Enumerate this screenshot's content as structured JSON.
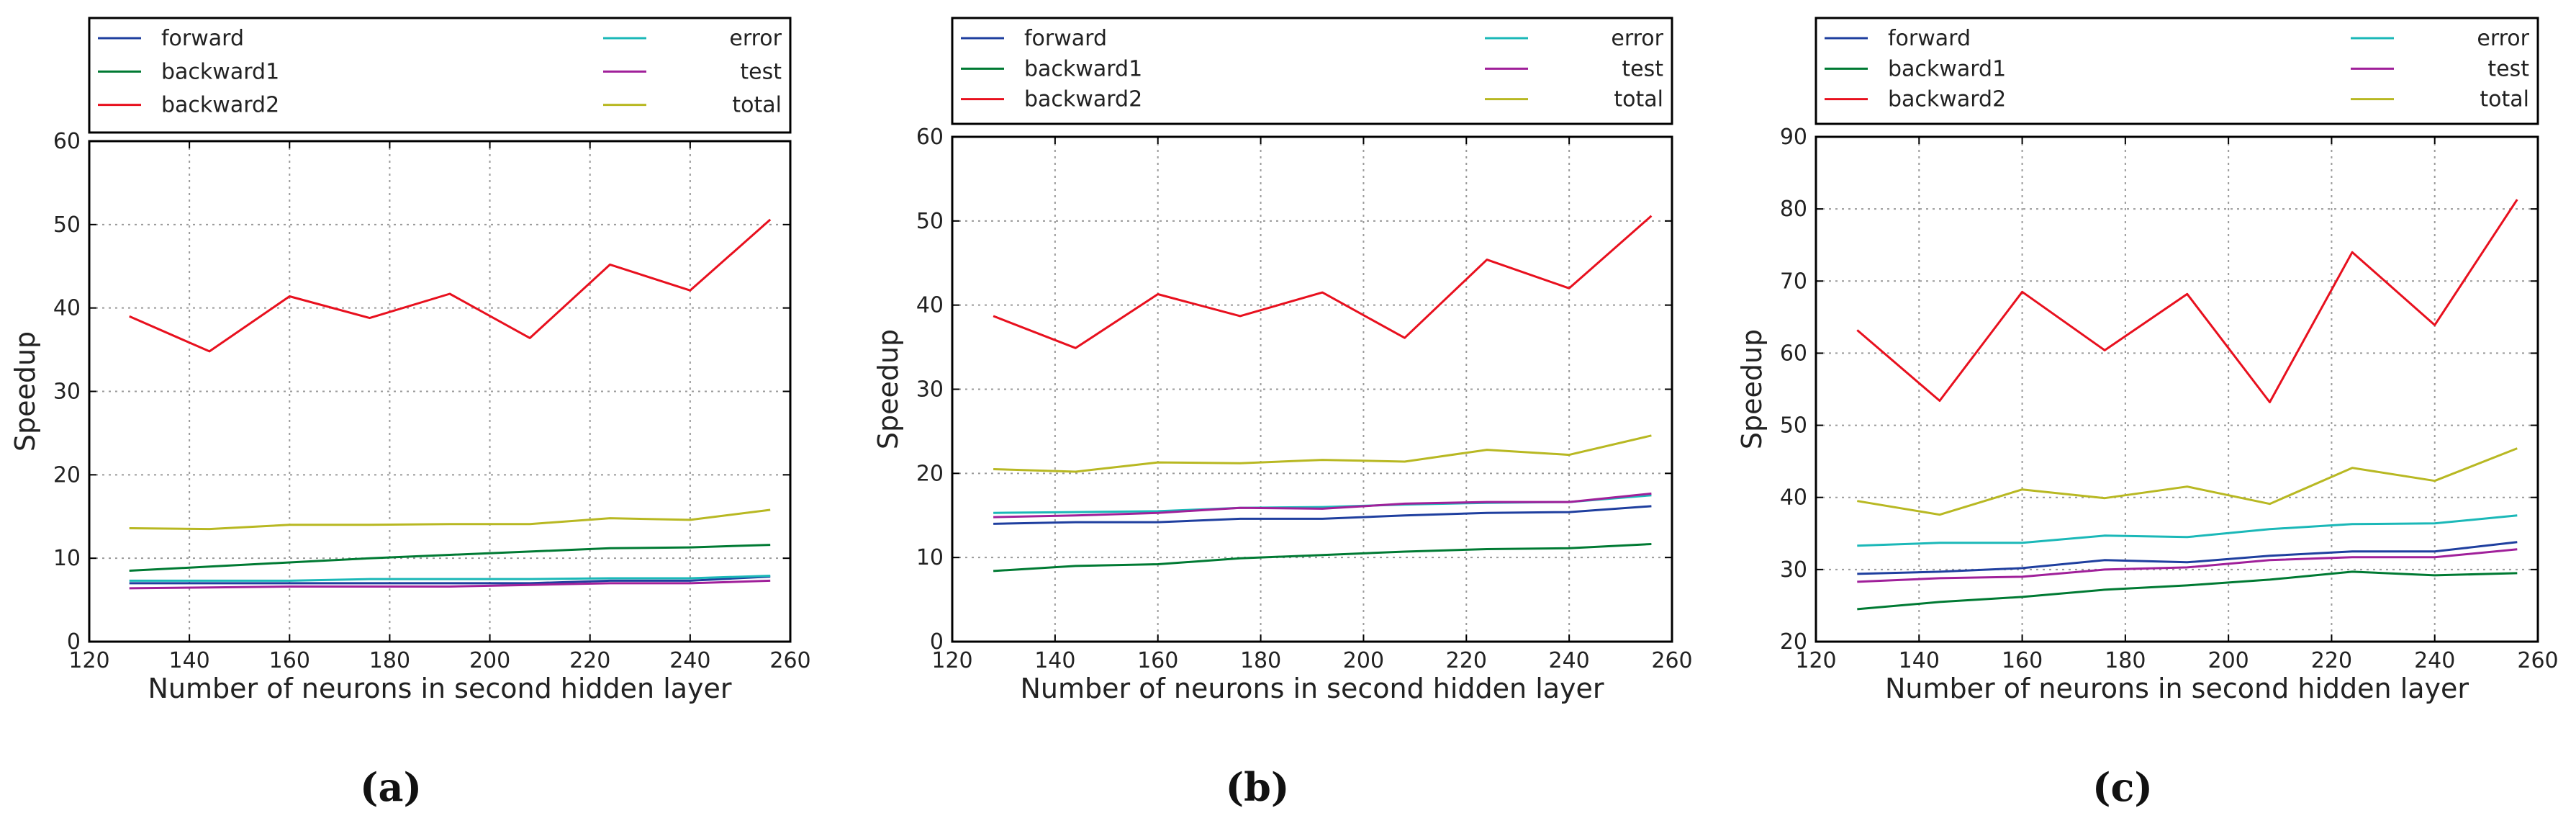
{
  "chart_data": [
    {
      "type": "line",
      "panel_label": "(a)",
      "xlabel": "Number of neurons in second hidden layer",
      "ylabel": "Speedup",
      "xlim": [
        120,
        260
      ],
      "ylim": [
        0,
        60
      ],
      "xticks": [
        120,
        140,
        160,
        180,
        200,
        220,
        240,
        260
      ],
      "yticks": [
        0,
        10,
        20,
        30,
        40,
        50,
        60
      ],
      "grid": true,
      "legend_position": "top",
      "x": [
        128,
        144,
        160,
        176,
        192,
        208,
        224,
        240,
        256
      ],
      "series": [
        {
          "name": "forward",
          "color": "#1f3f9f",
          "values": [
            7.0,
            7.0,
            7.0,
            7.0,
            7.0,
            7.0,
            7.3,
            7.3,
            7.8
          ]
        },
        {
          "name": "backward1",
          "color": "#007a33",
          "values": [
            8.5,
            9.0,
            9.5,
            10.0,
            10.4,
            10.8,
            11.2,
            11.3,
            11.6
          ]
        },
        {
          "name": "backward2",
          "color": "#e8101e",
          "values": [
            39.0,
            34.8,
            41.4,
            38.8,
            41.7,
            36.4,
            45.2,
            42.1,
            50.6
          ]
        },
        {
          "name": "error",
          "color": "#1bb8b8",
          "values": [
            7.3,
            7.3,
            7.3,
            7.5,
            7.5,
            7.5,
            7.6,
            7.6,
            7.9
          ]
        },
        {
          "name": "test",
          "color": "#a0209a",
          "values": [
            6.4,
            6.5,
            6.6,
            6.6,
            6.6,
            6.8,
            7.0,
            7.0,
            7.3
          ]
        },
        {
          "name": "total",
          "color": "#b8b822",
          "values": [
            13.6,
            13.5,
            14.0,
            14.0,
            14.1,
            14.1,
            14.8,
            14.6,
            15.8
          ]
        }
      ]
    },
    {
      "type": "line",
      "panel_label": "(b)",
      "xlabel": "Number of neurons in second hidden layer",
      "ylabel": "Speedup",
      "xlim": [
        120,
        260
      ],
      "ylim": [
        0,
        60
      ],
      "xticks": [
        120,
        140,
        160,
        180,
        200,
        220,
        240,
        260
      ],
      "yticks": [
        0,
        10,
        20,
        30,
        40,
        50,
        60
      ],
      "grid": true,
      "legend_position": "top",
      "x": [
        128,
        144,
        160,
        176,
        192,
        208,
        224,
        240,
        256
      ],
      "series": [
        {
          "name": "forward",
          "color": "#1f3f9f",
          "values": [
            14.0,
            14.2,
            14.2,
            14.6,
            14.6,
            15.0,
            15.3,
            15.4,
            16.1
          ]
        },
        {
          "name": "backward1",
          "color": "#007a33",
          "values": [
            8.4,
            9.0,
            9.2,
            9.9,
            10.3,
            10.7,
            11.0,
            11.1,
            11.6
          ]
        },
        {
          "name": "backward2",
          "color": "#e8101e",
          "values": [
            38.7,
            34.9,
            41.3,
            38.7,
            41.5,
            36.1,
            45.4,
            42.0,
            50.6
          ]
        },
        {
          "name": "error",
          "color": "#1bb8b8",
          "values": [
            15.3,
            15.4,
            15.5,
            15.9,
            16.0,
            16.3,
            16.5,
            16.6,
            17.4
          ]
        },
        {
          "name": "test",
          "color": "#a0209a",
          "values": [
            14.8,
            15.0,
            15.3,
            15.9,
            15.8,
            16.4,
            16.6,
            16.6,
            17.6
          ]
        },
        {
          "name": "total",
          "color": "#b8b822",
          "values": [
            20.5,
            20.2,
            21.3,
            21.2,
            21.6,
            21.4,
            22.8,
            22.2,
            24.5
          ]
        }
      ]
    },
    {
      "type": "line",
      "panel_label": "(c)",
      "xlabel": "Number of neurons in second hidden layer",
      "ylabel": "Speedup",
      "xlim": [
        120,
        260
      ],
      "ylim": [
        20,
        90
      ],
      "xticks": [
        120,
        140,
        160,
        180,
        200,
        220,
        240,
        260
      ],
      "yticks": [
        20,
        30,
        40,
        50,
        60,
        70,
        80,
        90
      ],
      "grid": true,
      "legend_position": "top",
      "x": [
        128,
        144,
        160,
        176,
        192,
        208,
        224,
        240,
        256
      ],
      "series": [
        {
          "name": "forward",
          "color": "#1f3f9f",
          "values": [
            29.4,
            29.7,
            30.2,
            31.3,
            31.0,
            31.9,
            32.5,
            32.5,
            33.8
          ]
        },
        {
          "name": "backward1",
          "color": "#007a33",
          "values": [
            24.5,
            25.5,
            26.2,
            27.2,
            27.8,
            28.6,
            29.7,
            29.2,
            29.5
          ]
        },
        {
          "name": "backward2",
          "color": "#e8101e",
          "values": [
            63.2,
            53.4,
            68.5,
            60.4,
            68.2,
            53.2,
            74.0,
            63.9,
            81.3
          ]
        },
        {
          "name": "error",
          "color": "#1bb8b8",
          "values": [
            33.3,
            33.7,
            33.7,
            34.7,
            34.5,
            35.6,
            36.3,
            36.4,
            37.5
          ]
        },
        {
          "name": "test",
          "color": "#a0209a",
          "values": [
            28.3,
            28.8,
            29.0,
            30.0,
            30.3,
            31.3,
            31.7,
            31.7,
            32.8
          ]
        },
        {
          "name": "total",
          "color": "#b8b822",
          "values": [
            39.5,
            37.6,
            41.1,
            39.9,
            41.5,
            39.1,
            44.1,
            42.3,
            46.8
          ]
        }
      ]
    }
  ]
}
